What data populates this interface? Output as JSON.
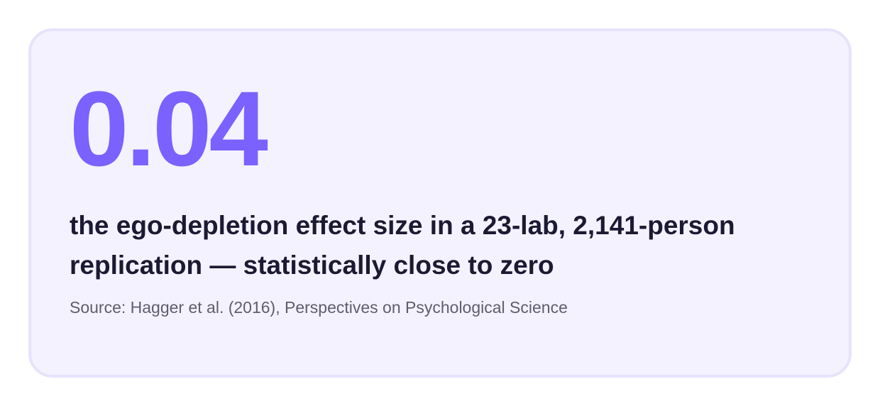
{
  "card": {
    "stat": "0.04",
    "headline": "the ego-depletion effect size in a 23-lab, 2,141-person replication — statistically close to zero",
    "source": "Source: Hagger et al. (2016), Perspectives on Psychological Science"
  },
  "colors": {
    "accent": "#7b61ff",
    "card_background": "#f4f2fe",
    "card_border": "#e7e3fb",
    "headline_text": "#1c1a33",
    "source_text": "#5f5d70"
  }
}
